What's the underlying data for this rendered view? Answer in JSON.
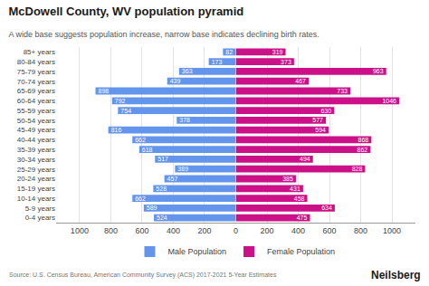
{
  "chart_data": {
    "type": "bar",
    "orientation": "horizontal",
    "title": "McDowell County, WV population pyramid",
    "subtitle": "A wide base suggests population increase, narrow base indicates declining birth rates.",
    "annotations": [
      "Source: U.S. Census Bureau, American Community Survey (ACS) 2017-2021 5-Year Estimates",
      "Neilsberg"
    ],
    "categories": [
      "0-4 years",
      "5-9 years",
      "10-14 years",
      "15-19 years",
      "20-24 years",
      "25-29 years",
      "30-34 years",
      "35-39 years",
      "40-44 years",
      "45-49 years",
      "50-54 years",
      "55-59 years",
      "60-64 years",
      "65-69 years",
      "70-74 years",
      "75-79 years",
      "80-84 years",
      "85+ years"
    ],
    "series": [
      {
        "name": "Male Population",
        "color": "#6495ED",
        "values": [
          524,
          589,
          662,
          528,
          457,
          389,
          517,
          618,
          662,
          816,
          378,
          754,
          792,
          898,
          439,
          363,
          173,
          82
        ]
      },
      {
        "name": "Female Population",
        "color": "#CC1188",
        "values": [
          475,
          634,
          458,
          431,
          385,
          828,
          494,
          862,
          868,
          594,
          577,
          630,
          1046,
          733,
          467,
          963,
          373,
          319
        ]
      }
    ],
    "xlim": [
      0,
      1150
    ],
    "xticks": [
      0,
      200,
      400,
      600,
      800,
      1000
    ],
    "grid": true,
    "legend": "bottom",
    "data_labels": true
  }
}
